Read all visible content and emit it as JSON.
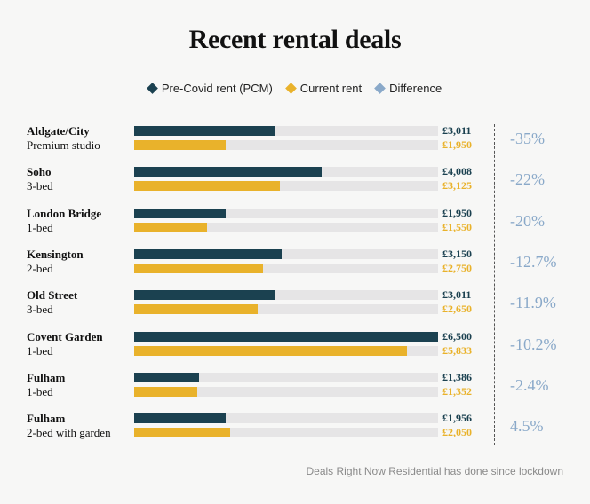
{
  "title": "Recent rental deals",
  "footnote": "Deals Right Now Residential has done since lockdown",
  "colors": {
    "pre_covid": "#1b4150",
    "current": "#e9b22b",
    "difference": "#8aa9c9",
    "track": "#e6e5e6"
  },
  "legend": [
    {
      "label": "Pre-Covid rent (PCM)",
      "color": "#1b4150"
    },
    {
      "label": "Current rent",
      "color": "#e9b22b"
    },
    {
      "label": "Difference",
      "color": "#8aa9c9"
    }
  ],
  "chart_data": {
    "type": "bar",
    "orientation": "horizontal",
    "xlim": [
      0,
      6500
    ],
    "series": [
      {
        "name": "Pre-Covid rent (PCM)",
        "values": [
          3011,
          4008,
          1950,
          3150,
          3011,
          6500,
          1386,
          1956
        ]
      },
      {
        "name": "Current rent",
        "values": [
          1950,
          3125,
          1550,
          2750,
          2650,
          5833,
          1352,
          2050
        ]
      },
      {
        "name": "Difference",
        "values": [
          -35,
          -22,
          -20,
          -12.7,
          -11.9,
          -10.2,
          -2.4,
          4.5
        ]
      }
    ],
    "rows": [
      {
        "location": "Aldgate/City",
        "type": "Premium studio",
        "pre": 3011,
        "cur": 1950,
        "pre_label": "£3,011",
        "cur_label": "£1,950",
        "diff_label": "-35%"
      },
      {
        "location": "Soho",
        "type": "3-bed",
        "pre": 4008,
        "cur": 3125,
        "pre_label": "£4,008",
        "cur_label": "£3,125",
        "diff_label": "-22%"
      },
      {
        "location": "London Bridge",
        "type": "1-bed",
        "pre": 1950,
        "cur": 1550,
        "pre_label": "£1,950",
        "cur_label": "£1,550",
        "diff_label": "-20%"
      },
      {
        "location": "Kensington",
        "type": "2-bed",
        "pre": 3150,
        "cur": 2750,
        "pre_label": "£3,150",
        "cur_label": "£2,750",
        "diff_label": "-12.7%"
      },
      {
        "location": "Old Street",
        "type": "3-bed",
        "pre": 3011,
        "cur": 2650,
        "pre_label": "£3,011",
        "cur_label": "£2,650",
        "diff_label": "-11.9%"
      },
      {
        "location": "Covent Garden",
        "type": "1-bed",
        "pre": 6500,
        "cur": 5833,
        "pre_label": "£6,500",
        "cur_label": "£5,833",
        "diff_label": "-10.2%"
      },
      {
        "location": "Fulham",
        "type": "1-bed",
        "pre": 1386,
        "cur": 1352,
        "pre_label": "£1,386",
        "cur_label": "£1,352",
        "diff_label": "-2.4%"
      },
      {
        "location": "Fulham",
        "type": "2-bed with garden",
        "pre": 1956,
        "cur": 2050,
        "pre_label": "£1,956",
        "cur_label": "£2,050",
        "diff_label": "4.5%"
      }
    ]
  }
}
